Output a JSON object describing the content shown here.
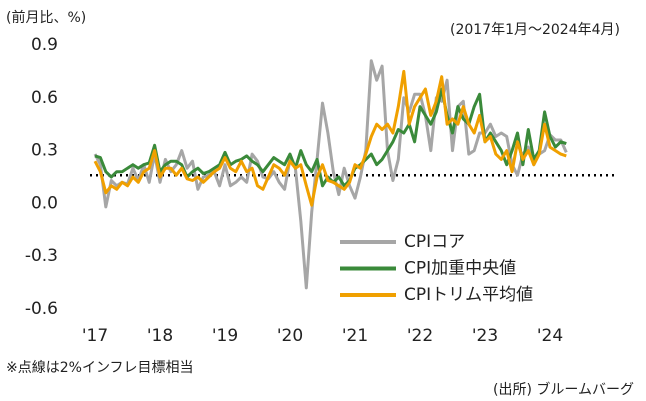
{
  "chart_data": {
    "type": "line",
    "y_label": "(前月比、%)",
    "subtitle": "(2017年1月～2024年4月)",
    "note": "※点線は2%インフレ目標相当",
    "source": "(出所) ブルームバーグ",
    "target_line": 0.16,
    "categories": [
      "'17",
      null,
      null,
      null,
      null,
      null,
      null,
      null,
      null,
      null,
      null,
      null,
      "'18",
      null,
      null,
      null,
      null,
      null,
      null,
      null,
      null,
      null,
      null,
      null,
      "'19",
      null,
      null,
      null,
      null,
      null,
      null,
      null,
      null,
      null,
      null,
      null,
      "'20",
      null,
      null,
      null,
      null,
      null,
      null,
      null,
      null,
      null,
      null,
      null,
      "'21",
      null,
      null,
      null,
      null,
      null,
      null,
      null,
      null,
      null,
      null,
      null,
      "'22",
      null,
      null,
      null,
      null,
      null,
      null,
      null,
      null,
      null,
      null,
      null,
      "'23",
      null,
      null,
      null,
      null,
      null,
      null,
      null,
      null,
      null,
      null,
      null,
      "'24",
      null,
      null,
      null
    ],
    "ylim": [
      -0.6,
      0.9
    ],
    "yticks": [
      {
        "value": 0.9,
        "label": "0.9"
      },
      {
        "value": 0.6,
        "label": "0.6"
      },
      {
        "value": 0.3,
        "label": "0.3"
      },
      {
        "value": 0,
        "label": "0.0"
      },
      {
        "value": -0.3,
        "label": "-0.3"
      },
      {
        "value": -0.6,
        "label": "-0.6"
      }
    ],
    "series": [
      {
        "name": "CPIコア",
        "color": "#a6a6a6",
        "values": [
          0.28,
          0.22,
          -0.02,
          0.13,
          0.1,
          0.12,
          0.11,
          0.2,
          0.13,
          0.22,
          0.12,
          0.28,
          0.12,
          0.25,
          0.18,
          0.22,
          0.3,
          0.2,
          0.24,
          0.08,
          0.15,
          0.16,
          0.18,
          0.1,
          0.22,
          0.1,
          0.12,
          0.15,
          0.12,
          0.28,
          0.24,
          0.15,
          0.14,
          0.18,
          0.12,
          0.08,
          0.25,
          0.2,
          -0.1,
          -0.48,
          -0.05,
          0.25,
          0.57,
          0.4,
          0.18,
          0.05,
          0.2,
          0.1,
          0.03,
          0.15,
          0.3,
          0.81,
          0.7,
          0.78,
          0.3,
          0.13,
          0.25,
          0.6,
          0.52,
          0.62,
          0.62,
          0.5,
          0.3,
          0.6,
          0.58,
          0.7,
          0.3,
          0.55,
          0.58,
          0.28,
          0.3,
          0.4,
          0.4,
          0.45,
          0.38,
          0.4,
          0.38,
          0.22,
          0.16,
          0.28,
          0.32,
          0.22,
          0.28,
          0.3,
          0.39,
          0.36,
          0.36,
          0.29
        ]
      },
      {
        "name": "CPI加重中央値",
        "color": "#3a8a3a",
        "values": [
          0.27,
          0.26,
          0.18,
          0.15,
          0.18,
          0.18,
          0.2,
          0.22,
          0.2,
          0.22,
          0.23,
          0.33,
          0.18,
          0.22,
          0.24,
          0.24,
          0.22,
          0.15,
          0.18,
          0.2,
          0.17,
          0.18,
          0.2,
          0.22,
          0.29,
          0.22,
          0.24,
          0.25,
          0.27,
          0.24,
          0.22,
          0.18,
          0.22,
          0.26,
          0.24,
          0.22,
          0.28,
          0.2,
          0.3,
          0.22,
          0.18,
          0.25,
          0.1,
          0.15,
          0.12,
          0.15,
          0.1,
          0.13,
          0.2,
          0.22,
          0.25,
          0.28,
          0.22,
          0.25,
          0.3,
          0.35,
          0.42,
          0.4,
          0.45,
          0.35,
          0.55,
          0.5,
          0.45,
          0.52,
          0.65,
          0.5,
          0.4,
          0.55,
          0.48,
          0.45,
          0.55,
          0.62,
          0.35,
          0.4,
          0.35,
          0.3,
          0.22,
          0.3,
          0.4,
          0.22,
          0.42,
          0.25,
          0.3,
          0.52,
          0.38,
          0.32,
          0.35,
          0.34
        ]
      },
      {
        "name": "CPIトリム平均値",
        "color": "#f0a000",
        "values": [
          0.24,
          0.18,
          0.06,
          0.1,
          0.08,
          0.12,
          0.1,
          0.15,
          0.12,
          0.18,
          0.2,
          0.3,
          0.15,
          0.2,
          0.2,
          0.16,
          0.2,
          0.14,
          0.13,
          0.15,
          0.12,
          0.15,
          0.18,
          0.2,
          0.26,
          0.2,
          0.18,
          0.24,
          0.18,
          0.2,
          0.1,
          0.08,
          0.15,
          0.22,
          0.2,
          0.16,
          0.24,
          0.2,
          0.22,
          0.1,
          -0.01,
          0.15,
          0.22,
          0.13,
          0.12,
          0.1,
          0.08,
          0.12,
          0.22,
          0.2,
          0.28,
          0.38,
          0.45,
          0.42,
          0.45,
          0.4,
          0.55,
          0.75,
          0.45,
          0.55,
          0.6,
          0.65,
          0.5,
          0.58,
          0.72,
          0.45,
          0.48,
          0.45,
          0.55,
          0.45,
          0.4,
          0.5,
          0.35,
          0.38,
          0.28,
          0.25,
          0.3,
          0.18,
          0.35,
          0.25,
          0.3,
          0.22,
          0.28,
          0.45,
          0.32,
          0.3,
          0.28,
          0.27
        ]
      }
    ]
  }
}
